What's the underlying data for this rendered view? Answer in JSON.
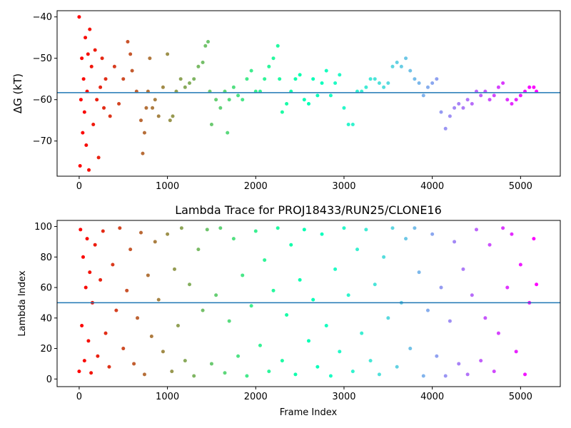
{
  "chart_data": [
    {
      "type": "scatter",
      "title": "",
      "xlabel": "",
      "ylabel": "ΔG (kT)",
      "xlim": [
        -250,
        5450
      ],
      "ylim": [
        -78.5,
        -38.5
      ],
      "xticks": [
        0,
        1000,
        2000,
        3000,
        4000,
        5000
      ],
      "yticks": [
        -40,
        -50,
        -60,
        -70
      ],
      "ytick_labels": [
        "−40",
        "−50",
        "−60",
        "−70"
      ],
      "hline": -58.3,
      "hline_color": "#1f77b4",
      "colormap": "rainbow",
      "marker_size": 2.5,
      "grid": false,
      "legend": "none",
      "series": [
        {
          "x": [
            0,
            10,
            20,
            30,
            40,
            50,
            60,
            70,
            80,
            90,
            100,
            110,
            120,
            140,
            160,
            180,
            200,
            220,
            240,
            260,
            280,
            300,
            350,
            400,
            450,
            500,
            550,
            580,
            600,
            650,
            700,
            720,
            740,
            760,
            780,
            800,
            830,
            860,
            900,
            950,
            1000,
            1030,
            1060,
            1100,
            1150,
            1200,
            1250,
            1300,
            1350,
            1400,
            1430,
            1460,
            1480,
            1500,
            1550,
            1600,
            1650,
            1680,
            1700,
            1750,
            1800,
            1850,
            1900,
            1950,
            2000,
            2050,
            2100,
            2150,
            2200,
            2250,
            2270,
            2300,
            2350,
            2400,
            2450,
            2500,
            2550,
            2600,
            2650,
            2700,
            2750,
            2800,
            2850,
            2900,
            2950,
            3000,
            3050,
            3100,
            3150,
            3200,
            3250,
            3300,
            3350,
            3400,
            3450,
            3500,
            3550,
            3600,
            3650,
            3700,
            3750,
            3800,
            3850,
            3900,
            3950,
            4000,
            4050,
            4100,
            4150,
            4200,
            4250,
            4300,
            4350,
            4400,
            4450,
            4500,
            4550,
            4600,
            4650,
            4700,
            4750,
            4800,
            4850,
            4900,
            4950,
            5000,
            5050,
            5100,
            5150,
            5180
          ],
          "y": [
            -40,
            -76,
            -60,
            -50,
            -68,
            -55,
            -63,
            -45,
            -71,
            -58,
            -49,
            -77,
            -43,
            -52,
            -66,
            -48,
            -60,
            -74,
            -57,
            -50,
            -62,
            -55,
            -64,
            -52,
            -61,
            -55,
            -46,
            -49,
            -53,
            -58,
            -65,
            -73,
            -68,
            -62,
            -58,
            -50,
            -62,
            -60,
            -64,
            -57,
            -49,
            -65,
            -64,
            -58,
            -55,
            -57,
            -56,
            -55,
            -52,
            -51,
            -47,
            -46,
            -58,
            -66,
            -60,
            -62,
            -58,
            -68,
            -60,
            -57,
            -59,
            -60,
            -55,
            -53,
            -58,
            -58,
            -55,
            -52,
            -50,
            -47,
            -55,
            -63,
            -61,
            -58,
            -55,
            -54,
            -60,
            -61,
            -55,
            -59,
            -56,
            -53,
            -59,
            -56,
            -54,
            -62,
            -66,
            -66,
            -58,
            -58,
            -57,
            -55,
            -55,
            -56,
            -57,
            -56,
            -52,
            -51,
            -52,
            -50,
            -53,
            -55,
            -56,
            -59,
            -57,
            -56,
            -55,
            -63,
            -67,
            -64,
            -62,
            -61,
            -62,
            -60,
            -61,
            -58,
            -59,
            -58,
            -60,
            -59,
            -57,
            -56,
            -60,
            -61,
            -60,
            -59,
            -58,
            -57,
            -57,
            -58
          ]
        }
      ]
    },
    {
      "type": "scatter",
      "title": "Lambda Trace for PROJ18433/RUN25/CLONE16",
      "xlabel": "Frame Index",
      "ylabel": "Lambda Index",
      "xlim": [
        -250,
        5450
      ],
      "ylim": [
        -5,
        104
      ],
      "xticks": [
        0,
        1000,
        2000,
        3000,
        4000,
        5000
      ],
      "yticks": [
        0,
        20,
        40,
        60,
        80,
        100
      ],
      "hline": 50,
      "hline_color": "#1f77b4",
      "colormap": "rainbow",
      "marker_size": 2.5,
      "grid": false,
      "legend": "none",
      "series": [
        {
          "x": [
            0,
            15,
            30,
            45,
            60,
            75,
            90,
            105,
            120,
            135,
            150,
            180,
            210,
            240,
            270,
            300,
            340,
            380,
            420,
            460,
            500,
            540,
            580,
            620,
            660,
            700,
            740,
            780,
            820,
            860,
            900,
            950,
            1000,
            1050,
            1080,
            1120,
            1160,
            1200,
            1250,
            1300,
            1350,
            1400,
            1450,
            1500,
            1550,
            1600,
            1650,
            1700,
            1750,
            1800,
            1850,
            1900,
            1950,
            2000,
            2050,
            2100,
            2150,
            2200,
            2250,
            2300,
            2350,
            2400,
            2450,
            2500,
            2550,
            2600,
            2650,
            2700,
            2750,
            2800,
            2850,
            2900,
            2950,
            3000,
            3050,
            3100,
            3150,
            3200,
            3250,
            3300,
            3350,
            3400,
            3450,
            3500,
            3550,
            3600,
            3650,
            3700,
            3750,
            3800,
            3850,
            3900,
            3950,
            4000,
            4050,
            4100,
            4150,
            4200,
            4250,
            4300,
            4350,
            4400,
            4450,
            4500,
            4550,
            4600,
            4650,
            4700,
            4750,
            4800,
            4850,
            4900,
            4950,
            5000,
            5050,
            5100,
            5150,
            5180
          ],
          "y": [
            5,
            98,
            35,
            80,
            12,
            60,
            92,
            25,
            70,
            4,
            50,
            88,
            15,
            65,
            97,
            30,
            8,
            75,
            45,
            99,
            20,
            58,
            85,
            10,
            40,
            96,
            3,
            68,
            28,
            90,
            52,
            18,
            95,
            5,
            72,
            35,
            99,
            12,
            62,
            2,
            85,
            45,
            98,
            10,
            55,
            99,
            4,
            38,
            92,
            15,
            68,
            2,
            48,
            97,
            22,
            78,
            5,
            58,
            99,
            12,
            42,
            88,
            3,
            65,
            98,
            25,
            52,
            8,
            95,
            35,
            2,
            72,
            18,
            99,
            55,
            5,
            85,
            30,
            98,
            12,
            62,
            3,
            80,
            40,
            99,
            8,
            50,
            92,
            20,
            99,
            70,
            2,
            45,
            95,
            15,
            60,
            2,
            38,
            90,
            10,
            72,
            3,
            55,
            98,
            12,
            40,
            88,
            5,
            30,
            99,
            60,
            95,
            18,
            75,
            3,
            50,
            92,
            62
          ]
        }
      ]
    }
  ]
}
